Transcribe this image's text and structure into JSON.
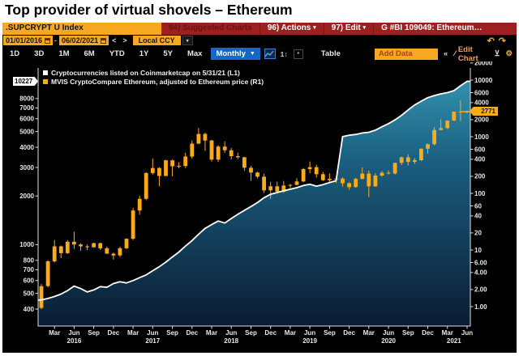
{
  "title": "Top provider of virtual shovels – Ethereum",
  "toolbar": {
    "ticker": ".SUPCRYPT U Index",
    "suggested": "94) Suggested Charts",
    "actions": "96) Actions",
    "edit": "97) Edit",
    "chart_id": "G #BI 109049: Ethereum…",
    "date_from": "01/01/2016",
    "date_to": "06/02/2021",
    "currency": "Local CCY",
    "periods": [
      "1D",
      "3D",
      "1M",
      "6M",
      "YTD",
      "1Y",
      "5Y",
      "Max"
    ],
    "frequency": "Monthly",
    "table_label": "Table",
    "add_data_placeholder": "Add Data",
    "edit_chart_label": "Edit Chart"
  },
  "icons": {
    "dash": "-",
    "prev": "<",
    "next": ">",
    "dropdown": "▾",
    "freq_arrow": "▼",
    "undo": "↶",
    "redo": "↷",
    "axis_icon": "1↕",
    "more": "•",
    "collapse": "«",
    "pencil": "∕",
    "export": "⊻",
    "gear": "⚙"
  },
  "legend": [
    {
      "color": "#ffffff",
      "label": "Cryptocurrencies listed on Coinmarketcap on 5/31/21 (L1)"
    },
    {
      "color": "#fbab18",
      "label": "MVIS CryptoCompare Ethereum, adjusted to Ethereum price (R1)"
    }
  ],
  "badges": {
    "left_last": "10227",
    "right_last": "2771"
  },
  "colors": {
    "amber": "#f7a821",
    "candle": "#fbab18",
    "line": "#ffffff",
    "area_top": "#3390ad",
    "area_mid": "#1a5f80",
    "area_bottom": "#0a1c33",
    "axis_text": "#e8e8e8",
    "axis_line": "#e0e0e0",
    "toolbar_red": "#9e1f1f",
    "freq_blue": "#1568c8"
  },
  "chart_data": {
    "type": "line",
    "title": "Top provider of virtual shovels – Ethereum",
    "x_start": "2016-01",
    "x_end": "2021-06",
    "x_axis": {
      "month_names": {
        "2": "Mar",
        "5": "Jun",
        "8": "Sep",
        "11": "Dec"
      },
      "year_labels": [
        {
          "label": "2016",
          "i": 5
        },
        {
          "label": "2017",
          "i": 17
        },
        {
          "label": "2018",
          "i": 29
        },
        {
          "label": "2019",
          "i": 41
        },
        {
          "label": "2020",
          "i": 53
        },
        {
          "label": "2021",
          "i": 63
        }
      ]
    },
    "left_axis": {
      "scale": "log",
      "ticks": [
        "8000",
        "7000",
        "6000",
        "5000",
        "4000",
        "3000",
        "2000",
        "1000",
        "800",
        "700",
        "600",
        "500",
        "400"
      ],
      "last": 10227
    },
    "right_axis": {
      "scale": "log",
      "ticks": [
        "20000",
        "10000",
        "6000",
        "4000",
        "2000",
        "1000",
        "600",
        "400",
        "200",
        "100",
        "60",
        "40",
        "20",
        "10",
        "6.00",
        "4.00",
        "2.00",
        "1.00"
      ],
      "last": 2771
    },
    "series": [
      {
        "name": "Cryptocurrencies listed on Coinmarketcap on 5/31/21",
        "axis": "L1",
        "type": "line",
        "color": "#ffffff",
        "values": [
          455,
          465,
          478,
          495,
          520,
          555,
          535,
          510,
          525,
          550,
          545,
          575,
          590,
          580,
          600,
          625,
          650,
          690,
          730,
          780,
          840,
          900,
          980,
          1060,
          1160,
          1260,
          1330,
          1400,
          1360,
          1450,
          1540,
          1630,
          1720,
          1820,
          1950,
          2050,
          2100,
          2150,
          2200,
          2250,
          2320,
          2360,
          2300,
          2350,
          2420,
          2480,
          4650,
          4750,
          4800,
          4900,
          4950,
          5100,
          5350,
          5600,
          5900,
          6300,
          6800,
          7300,
          7700,
          8100,
          8350,
          8550,
          8700,
          8950,
          9600,
          10227
        ]
      },
      {
        "name": "MVIS CryptoCompare Ethereum, adjusted to Ethereum price",
        "axis": "R1",
        "type": "candlestick",
        "color": "#fbab18",
        "candles": [
          [
            0.95,
            2.5,
            0.9,
            2.3
          ],
          [
            2.3,
            6.6,
            2.2,
            6.3
          ],
          [
            6.3,
            15,
            6,
            11.6
          ],
          [
            11.6,
            12,
            7.2,
            8.8
          ],
          [
            8.8,
            15,
            8.5,
            14.0
          ],
          [
            14,
            21,
            10.5,
            12.5
          ],
          [
            12.5,
            13,
            9.7,
            11.6
          ],
          [
            11.6,
            12.5,
            10,
            11.2
          ],
          [
            11.2,
            13.5,
            11,
            13.2
          ],
          [
            13.2,
            13.5,
            10,
            10.7
          ],
          [
            10.7,
            11.5,
            8.5,
            8.6
          ],
          [
            8.6,
            9,
            6.8,
            8.0
          ],
          [
            8,
            11.5,
            7.5,
            10.7
          ],
          [
            10.7,
            16,
            10.3,
            15.8
          ],
          [
            15.8,
            55,
            15,
            49.8
          ],
          [
            49.8,
            90,
            42,
            79.9
          ],
          [
            79.9,
            235,
            76,
            228
          ],
          [
            228,
            415,
            215,
            280
          ],
          [
            280,
            290,
            133,
            203
          ],
          [
            203,
            390,
            200,
            383
          ],
          [
            383,
            395,
            200,
            301
          ],
          [
            301,
            355,
            275,
            305
          ],
          [
            305,
            520,
            280,
            447
          ],
          [
            447,
            860,
            410,
            756
          ],
          [
            756,
            1420,
            740,
            1118
          ],
          [
            1118,
            1180,
            565,
            856
          ],
          [
            856,
            880,
            365,
            394
          ],
          [
            394,
            710,
            360,
            669
          ],
          [
            669,
            830,
            520,
            577
          ],
          [
            577,
            630,
            400,
            454
          ],
          [
            454,
            520,
            403,
            433
          ],
          [
            433,
            440,
            250,
            283
          ],
          [
            283,
            305,
            167,
            233
          ],
          [
            233,
            240,
            183,
            197
          ],
          [
            197,
            222,
            102,
            113
          ],
          [
            113,
            160,
            80,
            133
          ],
          [
            133,
            161,
            100,
            107
          ],
          [
            107,
            166,
            102,
            137
          ],
          [
            137,
            147,
            125,
            141
          ],
          [
            141,
            185,
            138,
            162
          ],
          [
            162,
            280,
            158,
            268
          ],
          [
            268,
            365,
            225,
            290
          ],
          [
            290,
            320,
            190,
            218
          ],
          [
            218,
            240,
            165,
            171
          ],
          [
            171,
            225,
            150,
            180
          ],
          [
            180,
            199,
            152,
            182
          ],
          [
            182,
            192,
            132,
            151
          ],
          [
            151,
            158,
            116,
            129
          ],
          [
            129,
            188,
            126,
            180
          ],
          [
            180,
            288,
            177,
            223
          ],
          [
            223,
            253,
            86,
            133
          ],
          [
            133,
            227,
            130,
            206
          ],
          [
            206,
            248,
            196,
            231
          ],
          [
            231,
            254,
            216,
            225
          ],
          [
            225,
            347,
            215,
            346
          ],
          [
            346,
            447,
            317,
            434
          ],
          [
            434,
            490,
            310,
            359
          ],
          [
            359,
            420,
            330,
            386
          ],
          [
            386,
            620,
            370,
            615
          ],
          [
            615,
            760,
            505,
            737
          ],
          [
            737,
            1475,
            700,
            1314
          ],
          [
            1314,
            2040,
            1300,
            1418
          ],
          [
            1418,
            1950,
            1370,
            1918
          ],
          [
            1918,
            2800,
            1900,
            2773
          ],
          [
            2773,
            4370,
            1880,
            2707
          ],
          [
            2707,
            2900,
            2600,
            2771
          ]
        ]
      }
    ]
  }
}
